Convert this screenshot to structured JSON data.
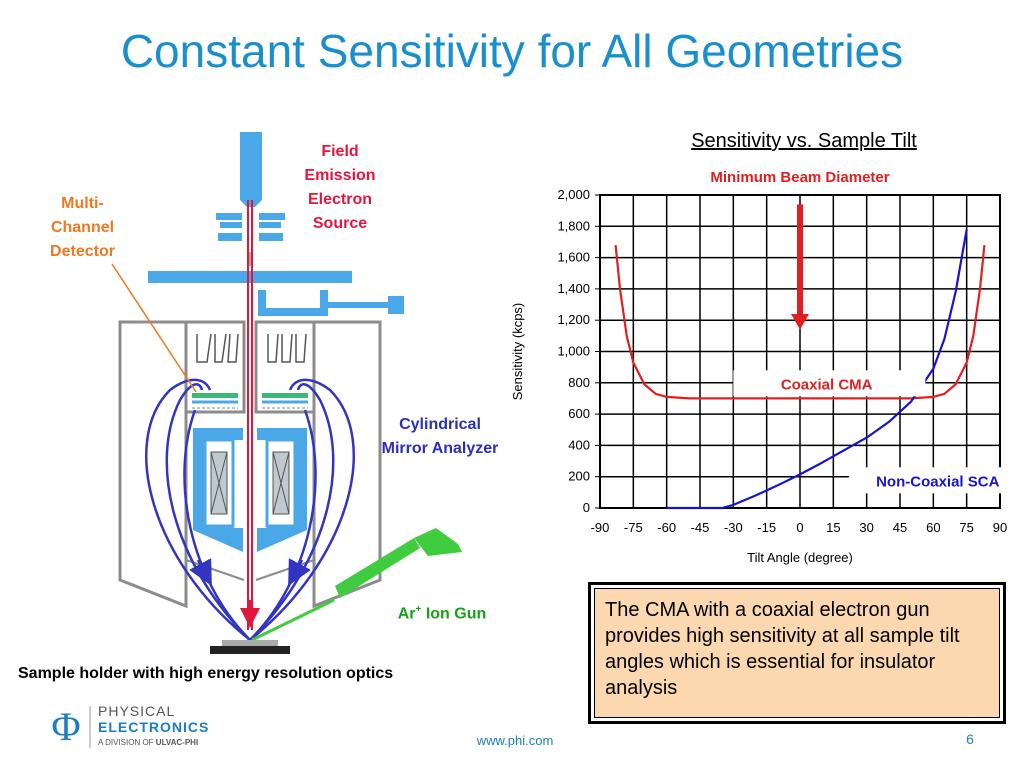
{
  "slide": {
    "title": "Constant Sensitivity for All Geometries",
    "page_number": "6",
    "footer_url": "www.phi.com"
  },
  "diagram": {
    "labels": {
      "field_emission": "Field Emission Electron Source",
      "multi_channel_detector": "Multi-Channel Detector",
      "cylindrical_mirror_analyzer": "Cylindrical Mirror Analyzer",
      "ion_gun_prefix": "Ar",
      "ion_gun_superscript": "+",
      "ion_gun_suffix": " Ion Gun"
    },
    "caption": "Sample holder with high energy resolution optics",
    "colors": {
      "analyzer_blue": "#4aa8e8",
      "chamber_gray": "#8c8c8c",
      "beam_red": "#e2173c",
      "trajectory_blue": "#3235c0",
      "ion_gun_green": "#3fcc3f",
      "detector_orange": "#f07820"
    }
  },
  "chart_title": "Sensitivity vs. Sample Tilt",
  "chart_data": {
    "type": "line",
    "title": "Sensitivity vs. Sample Tilt",
    "xlabel": "Tilt Angle (degree)",
    "ylabel": "Sensitivity (kcps)",
    "xlim": [
      -90,
      90
    ],
    "ylim": [
      0,
      2000
    ],
    "x_ticks": [
      "-90",
      "-75",
      "-60",
      "-45",
      "-30",
      "-15",
      "0",
      "15",
      "30",
      "45",
      "60",
      "75",
      "90"
    ],
    "y_ticks": [
      "0",
      "200",
      "400",
      "600",
      "800",
      "1,000",
      "1,200",
      "1,400",
      "1,600",
      "1,800",
      "2,000"
    ],
    "grid": true,
    "series": [
      {
        "name": "Coaxial CMA",
        "color": "#e02020",
        "x": [
          -83,
          -81,
          -78,
          -75,
          -70,
          -65,
          -60,
          -50,
          -30,
          0,
          30,
          50,
          60,
          65,
          70,
          75,
          78,
          81,
          83
        ],
        "y": [
          1680,
          1400,
          1100,
          930,
          790,
          730,
          710,
          700,
          700,
          700,
          700,
          700,
          710,
          730,
          790,
          930,
          1100,
          1400,
          1680
        ]
      },
      {
        "name": "Non-Coaxial SCA",
        "color": "#1515d0",
        "x": [
          -60,
          -45,
          -35,
          -30,
          -20,
          -10,
          0,
          10,
          20,
          30,
          40,
          50,
          60,
          65,
          70,
          75
        ],
        "y": [
          0,
          0,
          0,
          20,
          80,
          145,
          215,
          290,
          370,
          450,
          550,
          680,
          890,
          1080,
          1380,
          1780
        ]
      }
    ],
    "annotations": {
      "arrow_label": "Minimum Beam Diameter",
      "series_label_1": "Coaxial CMA",
      "series_label_2": "Non-Coaxial SCA"
    }
  },
  "callout_text": "The CMA with a coaxial electron gun provides high sensitivity at all sample tilt angles which is essential for insulator analysis",
  "logo": {
    "line1": "PHYSICAL",
    "line2": "ELECTRONICS",
    "line3_prefix": "A DIVISION OF ",
    "line3_brand": "ULVAC-PHI",
    "symbol": "Φ",
    "color": "#1a7ec0"
  }
}
